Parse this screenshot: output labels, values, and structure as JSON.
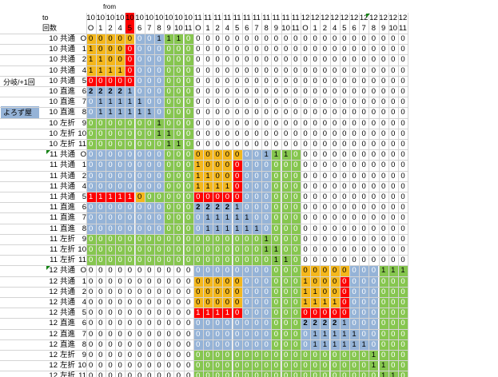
{
  "header": {
    "to": "to",
    "count": "回数",
    "from": "from"
  },
  "side_labels": {
    "branch": "分岐/+1回",
    "store": "よろず屋"
  },
  "palette": {
    "O": "#f4b71c",
    "B": "#95b3d7",
    "G": "#86c64f",
    "R": "#ff0000",
    "W": "#ffffff",
    "grid": "#d4d4d4"
  },
  "cols": [
    {
      "a": "10",
      "b": "O"
    },
    {
      "a": "10",
      "b": "1"
    },
    {
      "a": "10",
      "b": "2"
    },
    {
      "a": "10",
      "b": "4"
    },
    {
      "a": "10",
      "b": "5"
    },
    {
      "a": "10",
      "b": "6"
    },
    {
      "a": "10",
      "b": "7"
    },
    {
      "a": "10",
      "b": "8"
    },
    {
      "a": "10",
      "b": "9"
    },
    {
      "a": "10",
      "b": "10"
    },
    {
      "a": "10",
      "b": "11"
    },
    {
      "a": "11",
      "b": "O"
    },
    {
      "a": "11",
      "b": "1"
    },
    {
      "a": "11",
      "b": "2"
    },
    {
      "a": "11",
      "b": "4"
    },
    {
      "a": "11",
      "b": "5"
    },
    {
      "a": "11",
      "b": "6"
    },
    {
      "a": "11",
      "b": "7"
    },
    {
      "a": "11",
      "b": "8"
    },
    {
      "a": "11",
      "b": "9"
    },
    {
      "a": "11",
      "b": "10"
    },
    {
      "a": "11",
      "b": "11"
    },
    {
      "a": "12",
      "b": "O"
    },
    {
      "a": "12",
      "b": "1"
    },
    {
      "a": "12",
      "b": "2"
    },
    {
      "a": "12",
      "b": "4"
    },
    {
      "a": "12",
      "b": "5"
    },
    {
      "a": "12",
      "b": "6"
    },
    {
      "a": "12",
      "b": "7"
    },
    {
      "a": "12",
      "b": "8"
    },
    {
      "a": "12",
      "b": "9"
    },
    {
      "a": "12",
      "b": "10"
    },
    {
      "a": "12",
      "b": "11"
    }
  ],
  "rows": [
    {
      "n": "10",
      "t": "共通",
      "c": "O",
      "v": "000000011100000000000000000000000",
      "f": "OOOOOBBBGGGWWWWWWWWWWWWWWWWWWWWWW"
    },
    {
      "n": "10",
      "t": "共通",
      "c": "1",
      "v": "100000000000000000000000000000000",
      "f": "OOOORBBBGGGWWWWWWWWWWWWWWWWWWWWWW"
    },
    {
      "n": "10",
      "t": "共通",
      "c": "2",
      "v": "110000000000000000000000000000000",
      "f": "OOOORBBBGGGWWWWWWWWWWWWWWWWWWWWWW"
    },
    {
      "n": "10",
      "t": "共通",
      "c": "4",
      "v": "111100000000000000000000000000000",
      "f": "OOOORBBBGGGWWWWWWWWWWWWWWWWWWWWWW"
    },
    {
      "n": "10",
      "t": "共通",
      "c": "5",
      "v": "000000000000000000000000000000000",
      "f": "RRRRRBBBGGGWWWWWWWWWWWWWWWWWWWWWW"
    },
    {
      "n": "10",
      "t": "直進",
      "c": "6",
      "v": "222210000000000000000000000000000",
      "f": "BBBBBBBBGGGWWWWWWWWWWWWWWWWWWWWWW"
    },
    {
      "n": "10",
      "t": "直進",
      "c": "7",
      "v": "011111000000000000000000000000000",
      "f": "BBBBBBBBGGGWWWWWWWWWWWWWWWWWWWWWW"
    },
    {
      "n": "10",
      "t": "直進",
      "c": "8",
      "v": "011111100000000000000000000000000",
      "f": "BBBBBBBBGGGWWWWWWWWWWWWWWWWWWWWWW"
    },
    {
      "n": "10",
      "t": "左折",
      "c": "9",
      "v": "000000010000000000000000000000000",
      "f": "GGGGGGGGGGGWWWWWWWWWWWWWWWWWWWWWW"
    },
    {
      "n": "10",
      "t": "左折",
      "c": "10",
      "v": "000000011000000000000000000000000",
      "f": "GGGGGGGGGGGWWWWWWWWWWWWWWWWWWWWWW"
    },
    {
      "n": "10",
      "t": "左折",
      "c": "11",
      "v": "000000001100000000000000000000000",
      "f": "GGGGGGGGGGGWWWWWWWWWWWWWWWWWWWWWW"
    },
    {
      "n": "11",
      "t": "共通",
      "c": "O",
      "v": "000000000000000000111000000000000",
      "f": "BBBBBBBBGGGOOOOOBBBGGGWWWWWWWWWWW"
    },
    {
      "n": "11",
      "t": "共通",
      "c": "1",
      "v": "000000000001000000000000000000000",
      "f": "BBBBBBBBGGGOOOORBBBGGGWWWWWWWWWWW"
    },
    {
      "n": "11",
      "t": "共通",
      "c": "2",
      "v": "000000000001100000000000000000000",
      "f": "BBBBBBBBGGGOOOORBBBGGGWWWWWWWWWWW"
    },
    {
      "n": "11",
      "t": "共通",
      "c": "4",
      "v": "000000000001111000000000000000000",
      "f": "BBBBBBBBGGGOOOORBBBGGGWWWWWWWWWWW"
    },
    {
      "n": "11",
      "t": "共通",
      "c": "5",
      "v": "111110000000000000000000000000000",
      "f": "RRRRROGGGGGRRRRRBBBGGGWWWWWWWWWWW"
    },
    {
      "n": "11",
      "t": "直進",
      "c": "6",
      "v": "000000000002222100000000000000000",
      "f": "BBBBBBBBGGGBBBBBBBBGGGWWWWWWWWWWW"
    },
    {
      "n": "11",
      "t": "直進",
      "c": "7",
      "v": "000000000000111110000000000000000",
      "f": "BBBBBBBBGGGBBBBBBBBGGGWWWWWWWWWWW"
    },
    {
      "n": "11",
      "t": "直進",
      "c": "8",
      "v": "000000000000111111000000000000000",
      "f": "BBBBBBBBGGGBBBBBBBBGGGWWWWWWWWWWW"
    },
    {
      "n": "11",
      "t": "左折",
      "c": "9",
      "v": "000000000000000000100000000000000",
      "f": "GGGGGGGGGGGGGGGGGGGGGGWWWWWWWWWWW"
    },
    {
      "n": "11",
      "t": "左折",
      "c": "10",
      "v": "000000000000000000110000000000000",
      "f": "GGGGGGGGGGGGGGGGGGGGGGWWWWWWWWWWW"
    },
    {
      "n": "11",
      "t": "左折",
      "c": "11",
      "v": "000000000000000000011000000000000",
      "f": "GGGGGGGGGGGGGGGGGGGGGGWWWWWWWWWWW"
    },
    {
      "n": "12",
      "t": "共通",
      "c": "O",
      "v": "000000000000000000000000000000111",
      "f": "WWWWWWWWWWWBBBBBBBBGGGOOOOOBBBGGG"
    },
    {
      "n": "12",
      "t": "共通",
      "c": "1",
      "v": "000000000000000000000010000000000",
      "f": "WWWWWWWWWWWOOOOOBBBGGGOOOORBBBGGG"
    },
    {
      "n": "12",
      "t": "共通",
      "c": "2",
      "v": "000000000000000000000011000000000",
      "f": "WWWWWWWWWWWOOOOOBBBGGGOOOORBBBGGG"
    },
    {
      "n": "12",
      "t": "共通",
      "c": "4",
      "v": "000000000000000000000011110000000",
      "f": "WWWWWWWWWWWOOOOOBBBGGGOOOORBBBGGG"
    },
    {
      "n": "12",
      "t": "共通",
      "c": "5",
      "v": "000000000001111000000000000000000",
      "f": "WWWWWWWWWWWRRRRRBBBGGGRRRRRBBBGGG"
    },
    {
      "n": "12",
      "t": "直進",
      "c": "6",
      "v": "000000000000000000000022221000000",
      "f": "WWWWWWWWWWWBBBBBBBBGGGBBBBBBBBGGG"
    },
    {
      "n": "12",
      "t": "直進",
      "c": "7",
      "v": "000000000000000000000001111100000",
      "f": "WWWWWWWWWWWBBBBBBBBGGGBBBBBBBBGGG"
    },
    {
      "n": "12",
      "t": "直進",
      "c": "8",
      "v": "000000000000000000000001111110000",
      "f": "WWWWWWWWWWWBBBBBBBBGGGBBBBBBBBGGG"
    },
    {
      "n": "12",
      "t": "左折",
      "c": "9",
      "v": "000000000000000000000000000001000",
      "f": "WWWWWWWWWWWGGGGGGGGGGGGGGGGGGGGGG"
    },
    {
      "n": "12",
      "t": "左折",
      "c": "10",
      "v": "000000000000000000000000000001100",
      "f": "WWWWWWWWWWWGGGGGGGGGGGGGGGGGGGGGG"
    },
    {
      "n": "12",
      "t": "左折",
      "c": "11",
      "v": "000000000000000000000000000000110",
      "f": "WWWWWWWWWWWGGGGGGGGGGGGGGGGGGGGGG"
    }
  ]
}
